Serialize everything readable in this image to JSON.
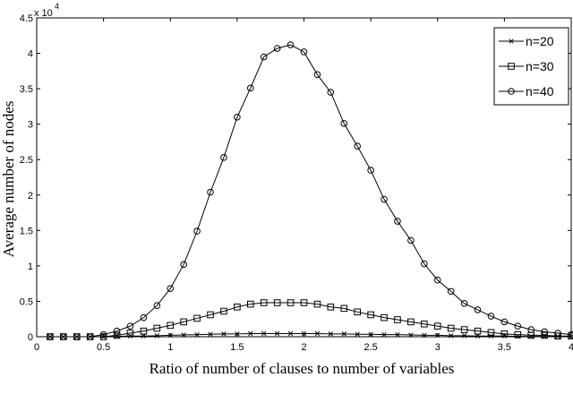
{
  "chart_data": {
    "type": "line",
    "xlabel": "Ratio of number of clauses to number of variables",
    "ylabel": "Average number of nodes",
    "y_exponent_base": "x 10",
    "y_exponent_power": "4",
    "xlim": [
      0,
      4
    ],
    "ylim": [
      0,
      4.5
    ],
    "grid": false,
    "legend_position": "top-right",
    "xticks": [
      "0",
      "0.5",
      "1",
      "1.5",
      "2",
      "2.5",
      "3",
      "3.5",
      "4"
    ],
    "yticks": [
      "0",
      "0.5",
      "1",
      "1.5",
      "2",
      "2.5",
      "3",
      "3.5",
      "4",
      "4.5"
    ],
    "x": [
      0.1,
      0.2,
      0.3,
      0.4,
      0.5,
      0.6,
      0.7,
      0.8,
      0.9,
      1.0,
      1.1,
      1.2,
      1.3,
      1.4,
      1.5,
      1.6,
      1.7,
      1.8,
      1.9,
      2.0,
      2.1,
      2.2,
      2.3,
      2.4,
      2.5,
      2.6,
      2.7,
      2.8,
      2.9,
      3.0,
      3.1,
      3.2,
      3.3,
      3.4,
      3.5,
      3.6,
      3.7,
      3.8,
      3.9,
      4.0
    ],
    "series": [
      {
        "name": "n=20",
        "marker": "x",
        "values": [
          0.0,
          0.0,
          0.0,
          0.0,
          0.0,
          0.005,
          0.01,
          0.01,
          0.015,
          0.02,
          0.025,
          0.03,
          0.035,
          0.04,
          0.04,
          0.045,
          0.045,
          0.045,
          0.045,
          0.045,
          0.045,
          0.04,
          0.04,
          0.035,
          0.035,
          0.03,
          0.03,
          0.025,
          0.02,
          0.02,
          0.015,
          0.015,
          0.01,
          0.01,
          0.01,
          0.005,
          0.005,
          0.005,
          0.005,
          0.0
        ]
      },
      {
        "name": "n=30",
        "marker": "square",
        "values": [
          0.0,
          0.0,
          0.0,
          0.0,
          0.0,
          0.02,
          0.05,
          0.08,
          0.12,
          0.16,
          0.21,
          0.26,
          0.31,
          0.36,
          0.42,
          0.46,
          0.48,
          0.48,
          0.48,
          0.48,
          0.46,
          0.42,
          0.4,
          0.35,
          0.31,
          0.27,
          0.24,
          0.21,
          0.18,
          0.15,
          0.12,
          0.1,
          0.08,
          0.06,
          0.04,
          0.03,
          0.02,
          0.02,
          0.01,
          0.01
        ]
      },
      {
        "name": "n=40",
        "marker": "circle",
        "values": [
          0.0,
          0.0,
          0.0,
          0.0,
          0.03,
          0.08,
          0.15,
          0.27,
          0.44,
          0.68,
          1.02,
          1.49,
          2.04,
          2.53,
          3.1,
          3.51,
          3.95,
          4.07,
          4.12,
          4.02,
          3.7,
          3.45,
          3.01,
          2.69,
          2.35,
          1.94,
          1.63,
          1.36,
          1.03,
          0.8,
          0.64,
          0.47,
          0.38,
          0.29,
          0.21,
          0.15,
          0.1,
          0.07,
          0.05,
          0.03
        ]
      }
    ]
  }
}
